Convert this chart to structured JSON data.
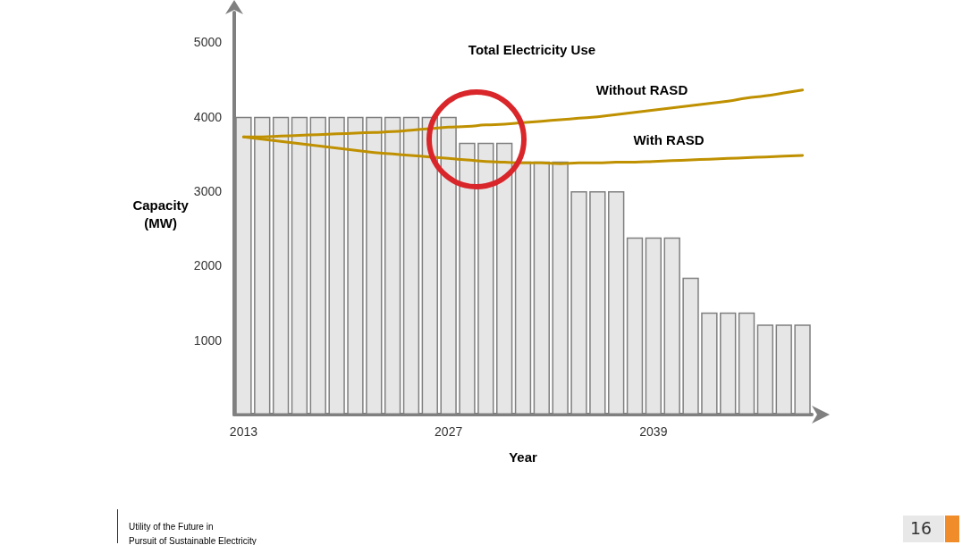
{
  "chart_data": {
    "type": "bar",
    "title": "Total Electricity Use",
    "xlabel": "Year",
    "ylabel": "Capacity\n(MW)",
    "categories": [
      "2013",
      null,
      null,
      null,
      null,
      null,
      null,
      null,
      null,
      null,
      null,
      "2027",
      null,
      null,
      null,
      null,
      null,
      null,
      null,
      null,
      null,
      null,
      "2039",
      null,
      null,
      null,
      null,
      null,
      null,
      null,
      null
    ],
    "series": [
      {
        "color": "#e6e6e6",
        "values": [
          4000,
          4000,
          4000,
          4000,
          4000,
          4000,
          4000,
          4000,
          4000,
          4000,
          4000,
          4000,
          3650,
          3650,
          3650,
          3400,
          3400,
          3400,
          3000,
          3000,
          3000,
          2380,
          2380,
          2380,
          1840,
          1370,
          1370,
          1370,
          1210,
          1210,
          1210
        ]
      },
      {
        "type": "line",
        "name": "Without RASD",
        "color": "#bf9000",
        "values": [
          3730,
          3730,
          3740,
          3750,
          3760,
          3770,
          3780,
          3790,
          3800,
          3820,
          3840,
          3860,
          3870,
          3890,
          3900,
          3920,
          3940,
          3960,
          3980,
          4000,
          4030,
          4060,
          4090,
          4120,
          4150,
          4180,
          4210,
          4250,
          4280,
          4320,
          4360
        ]
      },
      {
        "type": "line",
        "name": "With RASD",
        "color": "#bf9000",
        "values": [
          3730,
          3700,
          3670,
          3640,
          3610,
          3580,
          3550,
          3520,
          3500,
          3480,
          3460,
          3440,
          3420,
          3400,
          3390,
          3380,
          3380,
          3370,
          3380,
          3380,
          3390,
          3390,
          3400,
          3410,
          3420,
          3430,
          3440,
          3450,
          3460,
          3470,
          3480
        ]
      }
    ],
    "ylim": [
      0,
      5400
    ],
    "yticks": [
      1000,
      2000,
      3000,
      4000,
      5000
    ],
    "line_style": "solid",
    "marker": "none",
    "grid": false,
    "legend": false,
    "annotations": [
      "Utility of the Future in\nPursuit of Sustainable Electricity",
      "16"
    ]
  }
}
